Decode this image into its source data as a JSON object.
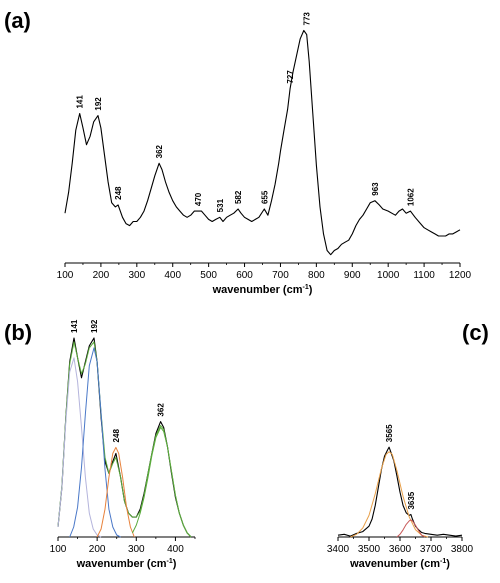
{
  "chart_data": [
    {
      "panel": "(a)",
      "type": "line",
      "xlabel": "wavenumber (cm",
      "xlabel_sup": "-1",
      "xlabel_end": ")",
      "xlim": [
        100,
        1200
      ],
      "xticks": [
        100,
        200,
        300,
        400,
        500,
        600,
        700,
        800,
        900,
        1000,
        1100,
        1200
      ],
      "yticks_visible": false,
      "series": [
        {
          "x": [
            100,
            110,
            120,
            130,
            141,
            150,
            160,
            170,
            180,
            192,
            200,
            210,
            220,
            230,
            240,
            248,
            260,
            270,
            280,
            290,
            300,
            310,
            320,
            330,
            340,
            350,
            362,
            370,
            380,
            390,
            400,
            410,
            420,
            430,
            440,
            450,
            460,
            470,
            480,
            490,
            500,
            510,
            520,
            531,
            540,
            550,
            560,
            570,
            582,
            590,
            600,
            610,
            620,
            630,
            640,
            655,
            665,
            675,
            685,
            695,
            700,
            710,
            720,
            727,
            735,
            745,
            755,
            765,
            773,
            780,
            790,
            800,
            810,
            820,
            830,
            840,
            850,
            860,
            870,
            880,
            890,
            900,
            910,
            920,
            930,
            940,
            950,
            963,
            975,
            985,
            1000,
            1010,
            1020,
            1030,
            1040,
            1050,
            1062,
            1075,
            1090,
            1100,
            1110,
            1120,
            1130,
            1140,
            1150,
            1160,
            1170,
            1180,
            1190,
            1200
          ],
          "y": [
            0.12,
            0.22,
            0.36,
            0.52,
            0.6,
            0.53,
            0.45,
            0.49,
            0.56,
            0.59,
            0.53,
            0.4,
            0.27,
            0.17,
            0.15,
            0.16,
            0.1,
            0.07,
            0.06,
            0.08,
            0.08,
            0.1,
            0.13,
            0.18,
            0.24,
            0.3,
            0.36,
            0.33,
            0.27,
            0.22,
            0.18,
            0.15,
            0.13,
            0.11,
            0.1,
            0.11,
            0.13,
            0.13,
            0.13,
            0.11,
            0.09,
            0.08,
            0.09,
            0.1,
            0.08,
            0.1,
            0.11,
            0.12,
            0.14,
            0.12,
            0.1,
            0.09,
            0.08,
            0.09,
            0.1,
            0.14,
            0.11,
            0.18,
            0.26,
            0.36,
            0.42,
            0.52,
            0.62,
            0.72,
            0.8,
            0.88,
            0.96,
            1.0,
            0.98,
            0.85,
            0.6,
            0.35,
            0.15,
            0.02,
            -0.06,
            -0.08,
            -0.06,
            -0.05,
            -0.03,
            -0.02,
            -0.01,
            0.02,
            0.06,
            0.09,
            0.11,
            0.14,
            0.17,
            0.18,
            0.16,
            0.14,
            0.13,
            0.12,
            0.11,
            0.13,
            0.14,
            0.12,
            0.13,
            0.1,
            0.07,
            0.05,
            0.04,
            0.03,
            0.02,
            0.01,
            0.01,
            0.01,
            0.02,
            0.02,
            0.03,
            0.04
          ],
          "color": "#000000"
        }
      ],
      "annotations": [
        {
          "text": "141",
          "x": 141,
          "y": 0.6
        },
        {
          "text": "192",
          "x": 192,
          "y": 0.59
        },
        {
          "text": "248",
          "x": 248,
          "y": 0.16
        },
        {
          "text": "362",
          "x": 362,
          "y": 0.36
        },
        {
          "text": "470",
          "x": 470,
          "y": 0.13
        },
        {
          "text": "531",
          "x": 531,
          "y": 0.1
        },
        {
          "text": "582",
          "x": 582,
          "y": 0.14
        },
        {
          "text": "655",
          "x": 655,
          "y": 0.14
        },
        {
          "text": "727",
          "x": 727,
          "y": 0.72
        },
        {
          "text": "773",
          "x": 773,
          "y": 1.0
        },
        {
          "text": "963",
          "x": 963,
          "y": 0.18
        },
        {
          "text": "1062",
          "x": 1062,
          "y": 0.13
        }
      ]
    },
    {
      "panel": "(b)",
      "type": "line",
      "xlabel": "wavenumber (cm",
      "xlabel_sup": "-1",
      "xlabel_end": ")",
      "xlim": [
        100,
        450
      ],
      "xticks": [
        100,
        200,
        300,
        400
      ],
      "yticks_visible": false,
      "series": [
        {
          "x": [
            100,
            110,
            120,
            130,
            141,
            150,
            160,
            170,
            180,
            192,
            200,
            210,
            220,
            230,
            240,
            248,
            260,
            270,
            280,
            290,
            300,
            310,
            320,
            330,
            340,
            350,
            362,
            370,
            380,
            390,
            400,
            410,
            420,
            430,
            440
          ],
          "y": [
            0.05,
            0.25,
            0.6,
            0.88,
            1.0,
            0.9,
            0.8,
            0.88,
            0.96,
            1.0,
            0.88,
            0.6,
            0.38,
            0.32,
            0.38,
            0.42,
            0.3,
            0.18,
            0.12,
            0.1,
            0.1,
            0.14,
            0.22,
            0.32,
            0.42,
            0.52,
            0.58,
            0.55,
            0.45,
            0.32,
            0.2,
            0.12,
            0.06,
            0.02,
            0.0
          ],
          "color": "#000000"
        },
        {
          "x": [
            100,
            110,
            120,
            130,
            141,
            150,
            160,
            170,
            180,
            192,
            200,
            210,
            220,
            230,
            240,
            248,
            260,
            270,
            280,
            290,
            300,
            310,
            320,
            330,
            340,
            350,
            362,
            370,
            380,
            390,
            400,
            410,
            420,
            430,
            440
          ],
          "y": [
            0.05,
            0.26,
            0.6,
            0.87,
            0.98,
            0.9,
            0.82,
            0.87,
            0.95,
            0.98,
            0.88,
            0.62,
            0.4,
            0.32,
            0.37,
            0.4,
            0.3,
            0.18,
            0.12,
            0.1,
            0.1,
            0.13,
            0.21,
            0.32,
            0.42,
            0.51,
            0.56,
            0.54,
            0.45,
            0.33,
            0.21,
            0.12,
            0.06,
            0.02,
            0.0
          ],
          "color": "#5aaa3c"
        },
        {
          "x": [
            100,
            110,
            120,
            130,
            141,
            150,
            160,
            170,
            180,
            190,
            200,
            210
          ],
          "y": [
            0.05,
            0.25,
            0.58,
            0.83,
            0.9,
            0.78,
            0.55,
            0.3,
            0.12,
            0.04,
            0.01,
            0.0
          ],
          "color": "#b4b4dc"
        },
        {
          "x": [
            130,
            140,
            150,
            160,
            170,
            180,
            192,
            200,
            210,
            220,
            230,
            240,
            250,
            260
          ],
          "y": [
            0.0,
            0.05,
            0.15,
            0.35,
            0.62,
            0.86,
            0.95,
            0.88,
            0.62,
            0.34,
            0.14,
            0.05,
            0.01,
            0.0
          ],
          "color": "#4a78c8"
        },
        {
          "x": [
            200,
            210,
            220,
            230,
            240,
            248,
            255,
            265,
            275,
            285,
            295
          ],
          "y": [
            0.0,
            0.04,
            0.14,
            0.3,
            0.42,
            0.45,
            0.42,
            0.3,
            0.15,
            0.05,
            0.0
          ],
          "color": "#e8823c"
        },
        {
          "x": [
            290,
            300,
            310,
            320,
            330,
            340,
            350,
            362,
            370,
            380,
            390,
            400,
            410,
            420,
            430,
            440
          ],
          "y": [
            0.02,
            0.06,
            0.12,
            0.2,
            0.3,
            0.41,
            0.5,
            0.55,
            0.53,
            0.45,
            0.33,
            0.21,
            0.12,
            0.06,
            0.02,
            0.0
          ],
          "color": "#5aaa3c"
        }
      ],
      "annotations": [
        {
          "text": "141",
          "x": 141,
          "y": 1.0
        },
        {
          "text": "192",
          "x": 192,
          "y": 1.0
        },
        {
          "text": "248",
          "x": 248,
          "y": 0.45
        },
        {
          "text": "362",
          "x": 362,
          "y": 0.58
        }
      ]
    },
    {
      "panel": "(c)",
      "type": "line",
      "xlabel": "wavenumber (cm",
      "xlabel_sup": "-1",
      "xlabel_end": ")",
      "xlim": [
        3400,
        3800
      ],
      "xticks": [
        3400,
        3500,
        3600,
        3700,
        3800
      ],
      "yticks_visible": false,
      "series": [
        {
          "x": [
            3400,
            3420,
            3440,
            3460,
            3480,
            3500,
            3510,
            3520,
            3530,
            3540,
            3550,
            3560,
            3565,
            3570,
            3580,
            3590,
            3600,
            3610,
            3620,
            3630,
            3635,
            3640,
            3650,
            3660,
            3670,
            3680,
            3700,
            3720,
            3740,
            3760,
            3780,
            3800
          ],
          "y": [
            0.02,
            0.03,
            0.01,
            0.04,
            0.06,
            0.12,
            0.2,
            0.35,
            0.55,
            0.75,
            0.9,
            0.97,
            1.0,
            0.95,
            0.85,
            0.68,
            0.5,
            0.35,
            0.27,
            0.24,
            0.25,
            0.2,
            0.12,
            0.08,
            0.05,
            0.04,
            0.03,
            0.02,
            0.03,
            0.02,
            0.01,
            0.02
          ],
          "color": "#000000"
        },
        {
          "x": [
            3440,
            3460,
            3480,
            3500,
            3520,
            3540,
            3555,
            3565,
            3575,
            3590,
            3610,
            3630,
            3650,
            3670,
            3690
          ],
          "y": [
            0.0,
            0.03,
            0.1,
            0.24,
            0.48,
            0.76,
            0.92,
            0.95,
            0.92,
            0.74,
            0.45,
            0.22,
            0.08,
            0.02,
            0.0
          ],
          "color": "#e8a04a"
        },
        {
          "x": [
            3590,
            3600,
            3610,
            3620,
            3630,
            3635,
            3640,
            3650,
            3660,
            3670,
            3680
          ],
          "y": [
            0.0,
            0.03,
            0.08,
            0.14,
            0.18,
            0.19,
            0.18,
            0.13,
            0.07,
            0.02,
            0.0
          ],
          "color": "#c85a5a"
        }
      ],
      "annotations": [
        {
          "text": "3565",
          "x": 3565,
          "y": 1.0
        },
        {
          "text": "3635",
          "x": 3635,
          "y": 0.25
        }
      ]
    }
  ]
}
